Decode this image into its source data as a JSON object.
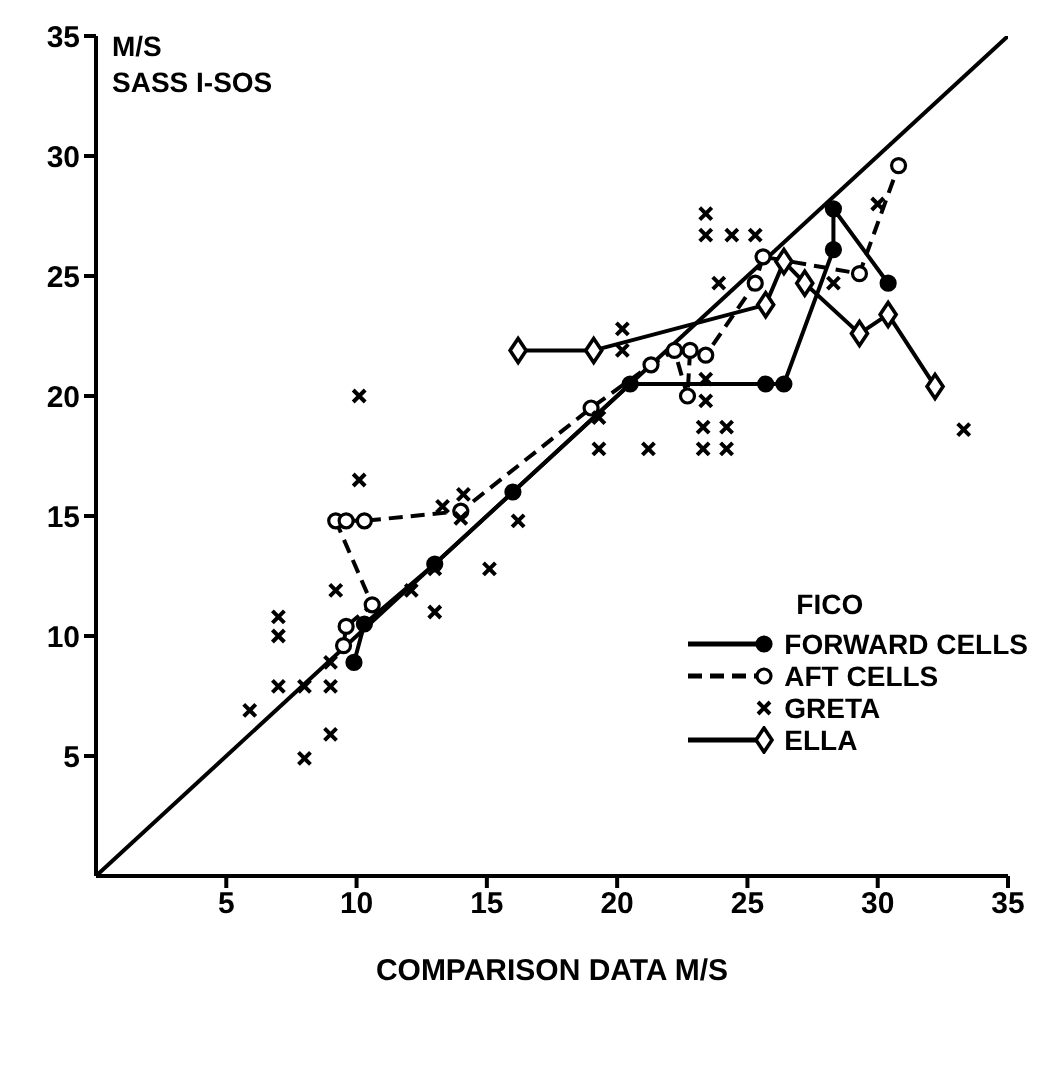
{
  "chart_data": {
    "type": "line",
    "title": "SASS I-SOS",
    "xlabel": "COMPARISON DATA M/S",
    "ylabel": "M/S",
    "legend_title": "FICO",
    "legend": "bottom right",
    "grid": false,
    "xlim": [
      0,
      35
    ],
    "ylim": [
      0,
      35
    ],
    "xticks": [
      5,
      10,
      15,
      20,
      25,
      30,
      35
    ],
    "yticks": [
      5,
      10,
      15,
      20,
      25,
      30,
      35
    ],
    "series": [
      {
        "color": "#000000",
        "marker": "none",
        "line_style": "solid",
        "x": [
          0,
          35
        ],
        "values": [
          0,
          35
        ]
      },
      {
        "name": "FORWARD CELLS",
        "color": "#000000",
        "marker": "circle",
        "line_style": "solid",
        "x": [
          9.9,
          10.3,
          13,
          16,
          20.5,
          25.7,
          26.4,
          28.3,
          28.3,
          30.4
        ],
        "values": [
          8.9,
          10.5,
          13,
          16,
          20.5,
          20.5,
          20.5,
          26.1,
          27.8,
          24.7
        ]
      },
      {
        "name": "AFT CELLS",
        "color": "#000000",
        "marker": "circle",
        "line_style": "dashed",
        "x": [
          9.5,
          9.6,
          10.6,
          9.2,
          9.6,
          10.3,
          14,
          19,
          21.3,
          22.2,
          22.7,
          22.8,
          23.4,
          25.3,
          25.6,
          29.3,
          30.8
        ],
        "values": [
          9.6,
          10.4,
          11.3,
          14.8,
          14.8,
          14.8,
          15.2,
          19.5,
          21.3,
          21.9,
          20,
          21.9,
          21.7,
          24.7,
          25.8,
          25.1,
          29.6
        ]
      },
      {
        "name": "GRETA",
        "type": "scatter",
        "color": "#000000",
        "marker": "cross",
        "x": [
          5.9,
          7,
          7,
          7,
          8,
          8,
          9,
          9,
          9,
          9.2,
          10.1,
          10.1,
          12.1,
          13,
          13,
          13.3,
          14,
          14.1,
          15.1,
          16.2,
          19.3,
          19.3,
          20.2,
          20.2,
          21.2,
          23.3,
          23.3,
          23.4,
          23.4,
          23.4,
          23.4,
          23.9,
          24.2,
          24.2,
          24.4,
          25.3,
          28.3,
          30,
          33.3
        ],
        "values": [
          6.9,
          10.8,
          10,
          7.9,
          7.9,
          4.9,
          7.9,
          5.9,
          8.9,
          11.9,
          16.5,
          20,
          11.9,
          12.8,
          11,
          15.4,
          14.9,
          15.9,
          12.8,
          14.8,
          17.8,
          19.1,
          22.8,
          21.9,
          17.8,
          18.7,
          17.8,
          20.7,
          19.8,
          27.6,
          26.7,
          24.7,
          18.7,
          17.8,
          26.7,
          26.7,
          24.7,
          28,
          18.6
        ]
      },
      {
        "name": "ELLA",
        "color": "#000000",
        "marker": "diamond",
        "line_style": "solid",
        "x": [
          16.2,
          19.1,
          25.7,
          26.4,
          27.2,
          29.3,
          30.4,
          32.2
        ],
        "values": [
          21.9,
          21.9,
          23.8,
          25.6,
          24.7,
          22.6,
          23.4,
          20.4
        ]
      }
    ]
  }
}
